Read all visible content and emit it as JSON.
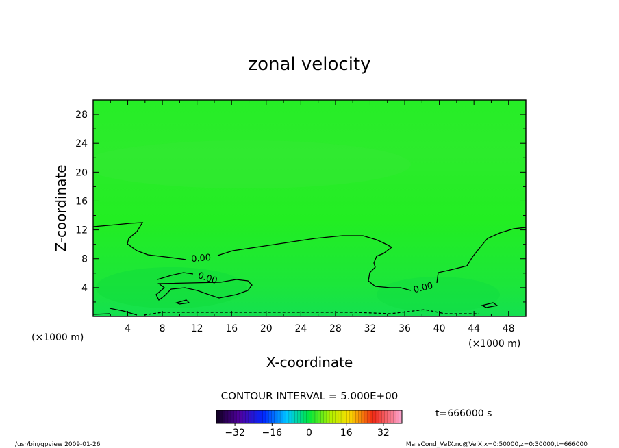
{
  "chart_data": {
    "type": "heatmap",
    "title": "zonal velocity",
    "xlabel": "X-coordinate",
    "ylabel": "Z-coordinate",
    "x_unit": "(×1000 m)",
    "z_unit": "(×1000 m)",
    "xlim": [
      0,
      50
    ],
    "ylim": [
      0,
      30
    ],
    "x_ticks": [
      "4",
      "8",
      "12",
      "16",
      "20",
      "24",
      "28",
      "32",
      "36",
      "40",
      "44",
      "48"
    ],
    "y_ticks": [
      "4",
      "8",
      "12",
      "16",
      "20",
      "24",
      "28"
    ],
    "contour_interval_text": "CONTOUR INTERVAL = 5.000E+00",
    "contour_labels": [
      "0.00",
      "0.00",
      "0.00"
    ],
    "colorbar": {
      "ticks": [
        "−32",
        "−16",
        "0",
        "16",
        "32"
      ],
      "tick_values": [
        -32,
        -16,
        0,
        16,
        32
      ],
      "range": [
        -40,
        40
      ]
    },
    "time_text": "t=666000 s"
  },
  "footer": {
    "left": "/usr/bin/gpview   2009-01-26",
    "right": "MarsCond_VelX.nc@VelX,x=0:50000,z=0:30000,t=666000"
  },
  "colors": {
    "field_main": "#22f022",
    "field_upper": "#2ee82e",
    "field_lower": "#18e23a",
    "contour": "#000000"
  }
}
